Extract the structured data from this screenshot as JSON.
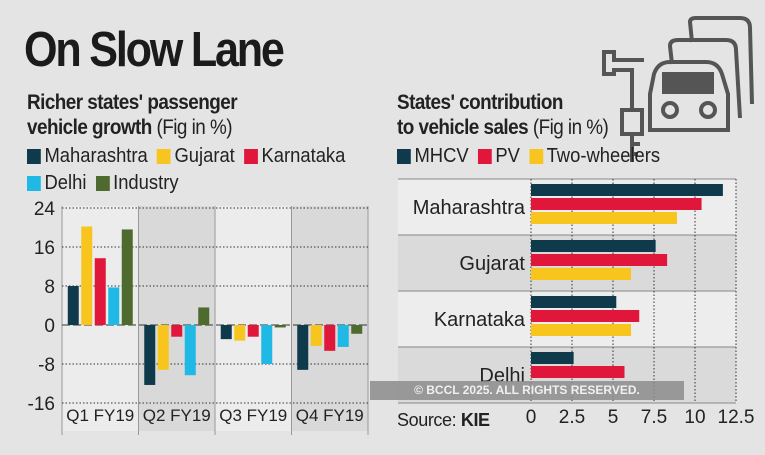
{
  "title": "On Slow Lane",
  "left": {
    "subtitle_bold_1": "Richer states' passenger",
    "subtitle_bold_2": "vehicle growth",
    "subtitle_unit": "(Fig in %)"
  },
  "right": {
    "subtitle_bold_1": "States' contribution",
    "subtitle_bold_2": "to vehicle sales",
    "subtitle_unit": "(Fig in %)"
  },
  "watermark": "© BCCL 2025. ALL RIGHTS RESERVED.",
  "source_label": "Source:",
  "source_value": "KIE",
  "icon": "car-key-icon",
  "chart_data": [
    {
      "type": "bar",
      "orientation": "vertical",
      "categories": [
        "Q1 FY19",
        "Q2 FY19",
        "Q3 FY19",
        "Q4 FY19"
      ],
      "series": [
        {
          "name": "Maharashtra",
          "color": "#0e3a4c",
          "values": [
            8,
            -12.3,
            -2.9,
            -9.2
          ]
        },
        {
          "name": "Gujarat",
          "color": "#f8c51f",
          "values": [
            20.2,
            -9.2,
            -3.2,
            -4.3
          ]
        },
        {
          "name": "Karnataka",
          "color": "#e0173b",
          "values": [
            13.7,
            -2.4,
            -2.4,
            -5.3
          ]
        },
        {
          "name": "Delhi",
          "color": "#20b9e6",
          "values": [
            7.7,
            -10.3,
            -8.0,
            -4.5
          ]
        },
        {
          "name": "Industry",
          "color": "#4f6a2e",
          "values": [
            19.6,
            3.6,
            -0.5,
            -1.8
          ]
        }
      ],
      "yticks": [
        "24",
        "16",
        "8",
        "0",
        "-8",
        "-16"
      ],
      "ylim": [
        -16,
        24
      ],
      "grid": true,
      "legend": "top"
    },
    {
      "type": "bar",
      "orientation": "horizontal",
      "categories": [
        "Maharashtra",
        "Gujarat",
        "Karnataka",
        "Delhi"
      ],
      "series": [
        {
          "name": "MHCV",
          "color": "#0e3a4c",
          "values": [
            11.7,
            7.6,
            5.2,
            2.6
          ]
        },
        {
          "name": "PV",
          "color": "#e0173b",
          "values": [
            10.4,
            8.3,
            6.6,
            5.7
          ]
        },
        {
          "name": "Two-wheelers",
          "color": "#f8c51f",
          "values": [
            8.9,
            6.1,
            6.1,
            null
          ]
        }
      ],
      "xticks": [
        "0",
        "2.5",
        "5",
        "7.5",
        "10",
        "12.5"
      ],
      "xlim": [
        0,
        12.5
      ],
      "grid": true,
      "legend": "top"
    }
  ]
}
